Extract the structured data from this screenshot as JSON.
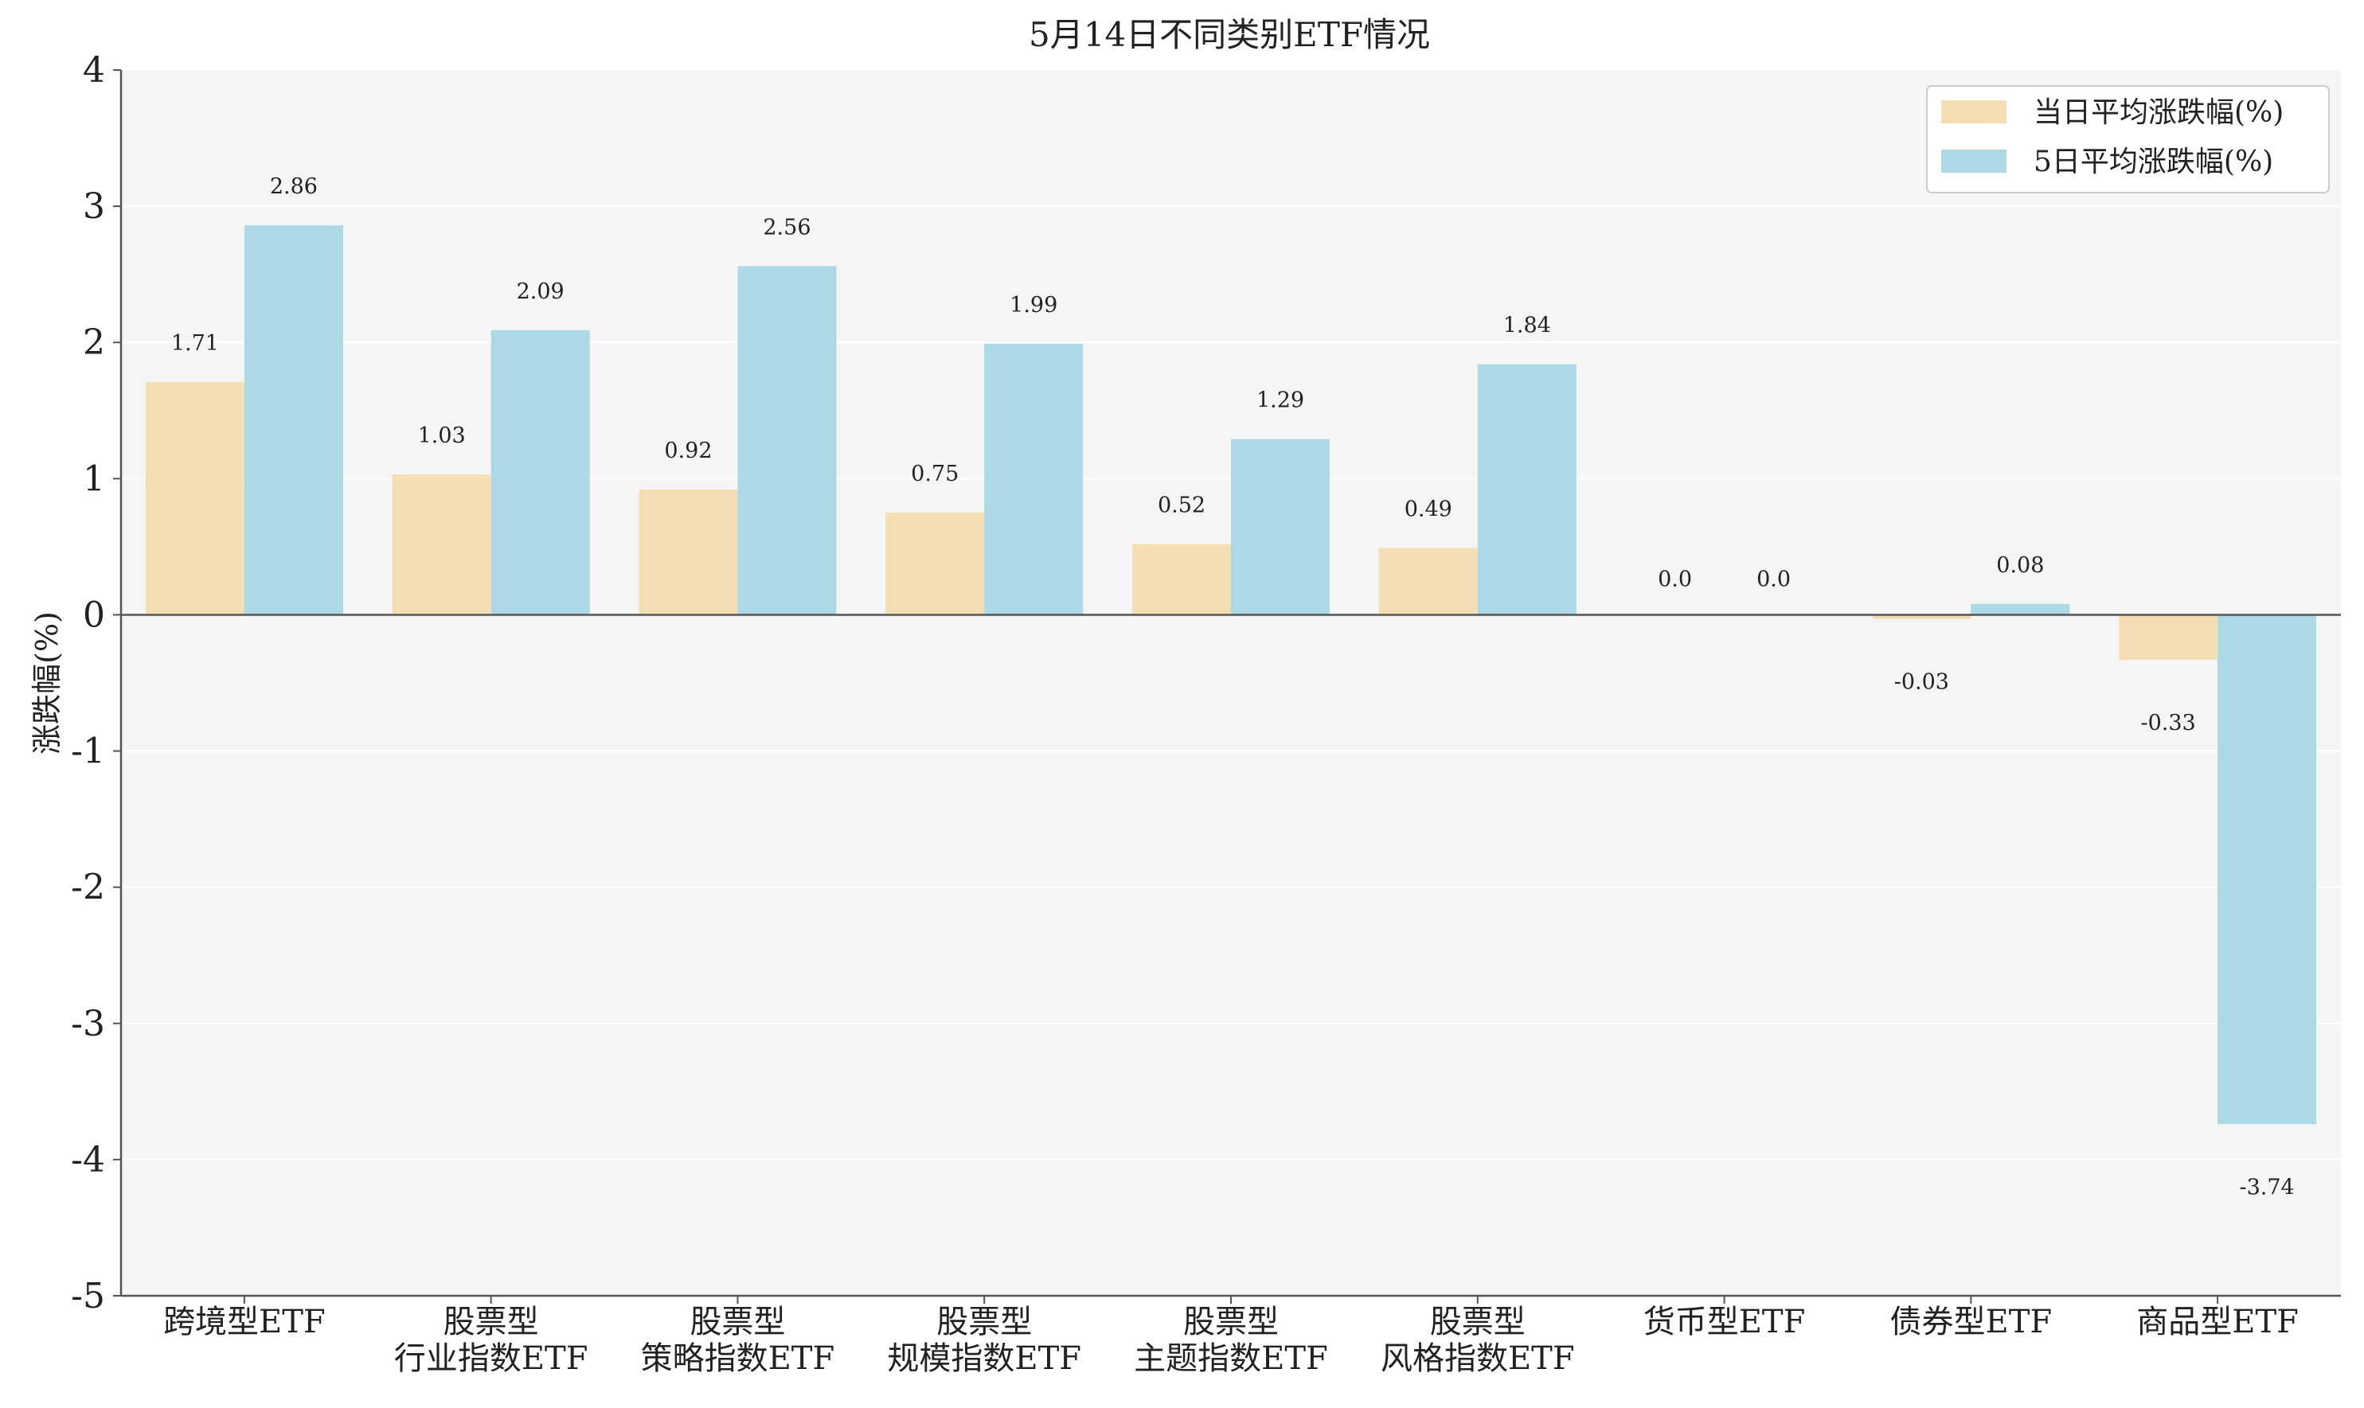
{
  "chart_data": {
    "type": "bar",
    "title": "5月14日不同类别ETF情况",
    "xlabel": "",
    "ylabel": "涨跌幅(%)",
    "ylim": [
      -5,
      4
    ],
    "yticks": [
      "4",
      "3",
      "2",
      "1",
      "0",
      "-1",
      "-2",
      "-3",
      "-4",
      "-5"
    ],
    "yticks_values": [
      4,
      3,
      2,
      1,
      0,
      -1,
      -2,
      -3,
      -4,
      -5
    ],
    "grid": true,
    "legend_position": "top-right",
    "categories": [
      [
        "跨境型ETF"
      ],
      [
        "股票型",
        "行业指数ETF"
      ],
      [
        "股票型",
        "策略指数ETF"
      ],
      [
        "股票型",
        "规模指数ETF"
      ],
      [
        "股票型",
        "主题指数ETF"
      ],
      [
        "股票型",
        "风格指数ETF"
      ],
      [
        "货币型ETF"
      ],
      [
        "债券型ETF"
      ],
      [
        "商品型ETF"
      ]
    ],
    "series": [
      {
        "name": "当日平均涨跌幅(%)",
        "color": "#f5deb3",
        "values": [
          1.71,
          1.03,
          0.92,
          0.75,
          0.52,
          0.49,
          0.0,
          -0.03,
          -0.33
        ],
        "labels": [
          "1.71",
          "1.03",
          "0.92",
          "0.75",
          "0.52",
          "0.49",
          "0.0",
          "-0.03",
          "-0.33"
        ]
      },
      {
        "name": "5日平均涨跌幅(%)",
        "color": "#add8e6",
        "values": [
          2.86,
          2.09,
          2.56,
          1.99,
          1.29,
          1.84,
          0.0,
          0.08,
          -3.74
        ],
        "labels": [
          "2.86",
          "2.09",
          "2.56",
          "1.99",
          "1.29",
          "1.84",
          "0.0",
          "0.08",
          "-3.74"
        ]
      }
    ]
  },
  "colors": {
    "plot_background": "#f5f5f5",
    "grid": "#ffffff",
    "axis": "#555555"
  }
}
